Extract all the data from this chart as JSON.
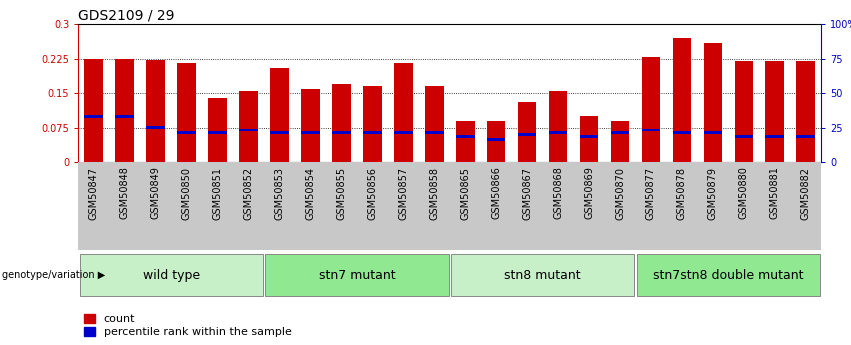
{
  "title": "GDS2109 / 29",
  "samples": [
    "GSM50847",
    "GSM50848",
    "GSM50849",
    "GSM50850",
    "GSM50851",
    "GSM50852",
    "GSM50853",
    "GSM50854",
    "GSM50855",
    "GSM50856",
    "GSM50857",
    "GSM50858",
    "GSM50865",
    "GSM50866",
    "GSM50867",
    "GSM50868",
    "GSM50869",
    "GSM50870",
    "GSM50877",
    "GSM50878",
    "GSM50879",
    "GSM50880",
    "GSM50881",
    "GSM50882"
  ],
  "counts": [
    0.225,
    0.225,
    0.222,
    0.215,
    0.14,
    0.155,
    0.205,
    0.16,
    0.17,
    0.165,
    0.215,
    0.165,
    0.09,
    0.09,
    0.13,
    0.155,
    0.1,
    0.09,
    0.228,
    0.27,
    0.26,
    0.22,
    0.22,
    0.22
  ],
  "percentile_ranks": [
    0.1,
    0.1,
    0.075,
    0.065,
    0.065,
    0.07,
    0.065,
    0.065,
    0.065,
    0.065,
    0.065,
    0.065,
    0.055,
    0.05,
    0.06,
    0.065,
    0.055,
    0.065,
    0.07,
    0.065,
    0.065,
    0.055,
    0.055,
    0.055
  ],
  "groups": [
    {
      "label": "wild type",
      "start": 0,
      "end": 5,
      "color": "#c8f0c8"
    },
    {
      "label": "stn7 mutant",
      "start": 6,
      "end": 11,
      "color": "#90e890"
    },
    {
      "label": "stn8 mutant",
      "start": 12,
      "end": 17,
      "color": "#c8f0c8"
    },
    {
      "label": "stn7stn8 double mutant",
      "start": 18,
      "end": 23,
      "color": "#90e890"
    }
  ],
  "ylim_left": [
    0,
    0.3
  ],
  "ylim_right": [
    0,
    100
  ],
  "yticks_left": [
    0,
    0.075,
    0.15,
    0.225,
    0.3
  ],
  "yticks_right": [
    0,
    25,
    50,
    75,
    100
  ],
  "ytick_labels_left": [
    "0",
    "0.075",
    "0.15",
    "0.225",
    "0.3"
  ],
  "ytick_labels_right": [
    "0",
    "25",
    "50",
    "75",
    "100%"
  ],
  "bar_color": "#cc0000",
  "percentile_color": "#0000cc",
  "bar_width": 0.6,
  "label_count": "count",
  "label_percentile": "percentile rank within the sample",
  "genotype_label": "genotype/variation",
  "left_tick_color": "#cc0000",
  "right_tick_color": "#0000cc",
  "title_fontsize": 10,
  "tick_fontsize": 7,
  "group_fontsize": 9,
  "legend_fontsize": 8,
  "grid_ticks": [
    0.075,
    0.15,
    0.225
  ],
  "xtick_gray": "#c8c8c8"
}
